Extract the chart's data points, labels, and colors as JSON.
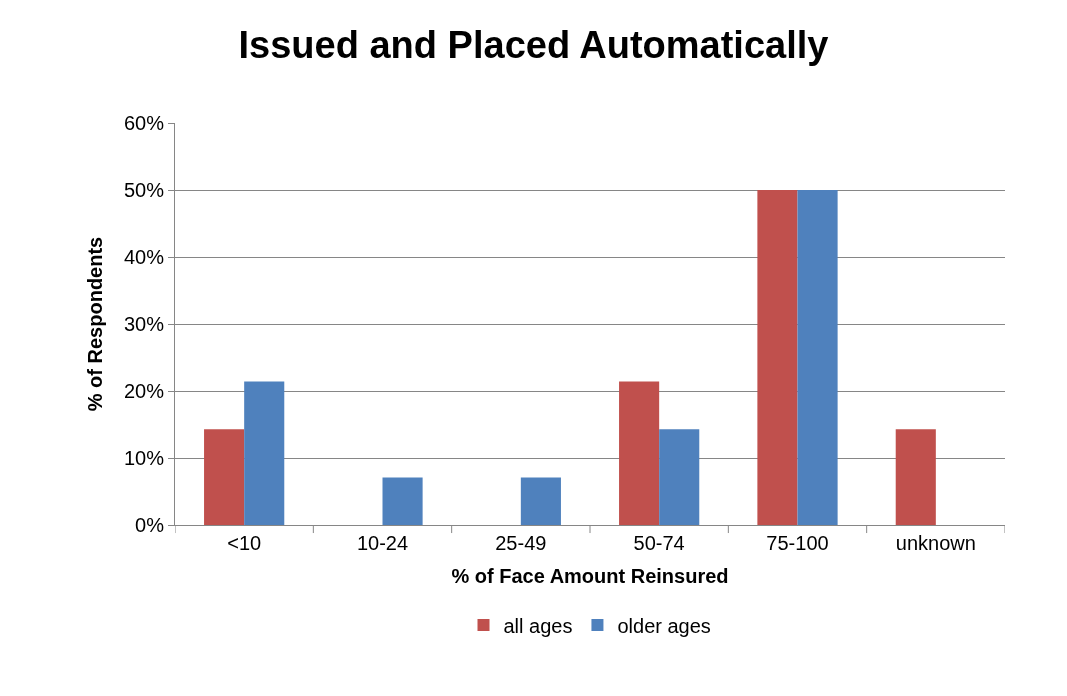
{
  "chart_data": {
    "type": "bar",
    "title": "Issued and Placed Automatically",
    "xlabel": "% of Face Amount Reinsured",
    "ylabel": "% of Respondents",
    "categories": [
      "<10",
      "10-24",
      "25-49",
      "50-74",
      "75-100",
      "unknown"
    ],
    "series": [
      {
        "name": "all ages",
        "color": "#c0504d",
        "values": [
          14.3,
          0,
          0,
          21.4,
          50,
          14.3
        ]
      },
      {
        "name": "older ages",
        "color": "#4f81bd",
        "values": [
          21.4,
          7.1,
          7.1,
          14.3,
          50,
          0
        ]
      }
    ],
    "ylim": [
      0,
      60
    ],
    "yticks": [
      {
        "value": 0,
        "label": "0%"
      },
      {
        "value": 10,
        "label": "10%"
      },
      {
        "value": 20,
        "label": "20%"
      },
      {
        "value": 30,
        "label": "30%"
      },
      {
        "value": 40,
        "label": "40%"
      },
      {
        "value": 50,
        "label": "50%"
      },
      {
        "value": 60,
        "label": "60%"
      }
    ],
    "grid": "y",
    "legend": "bottom"
  }
}
